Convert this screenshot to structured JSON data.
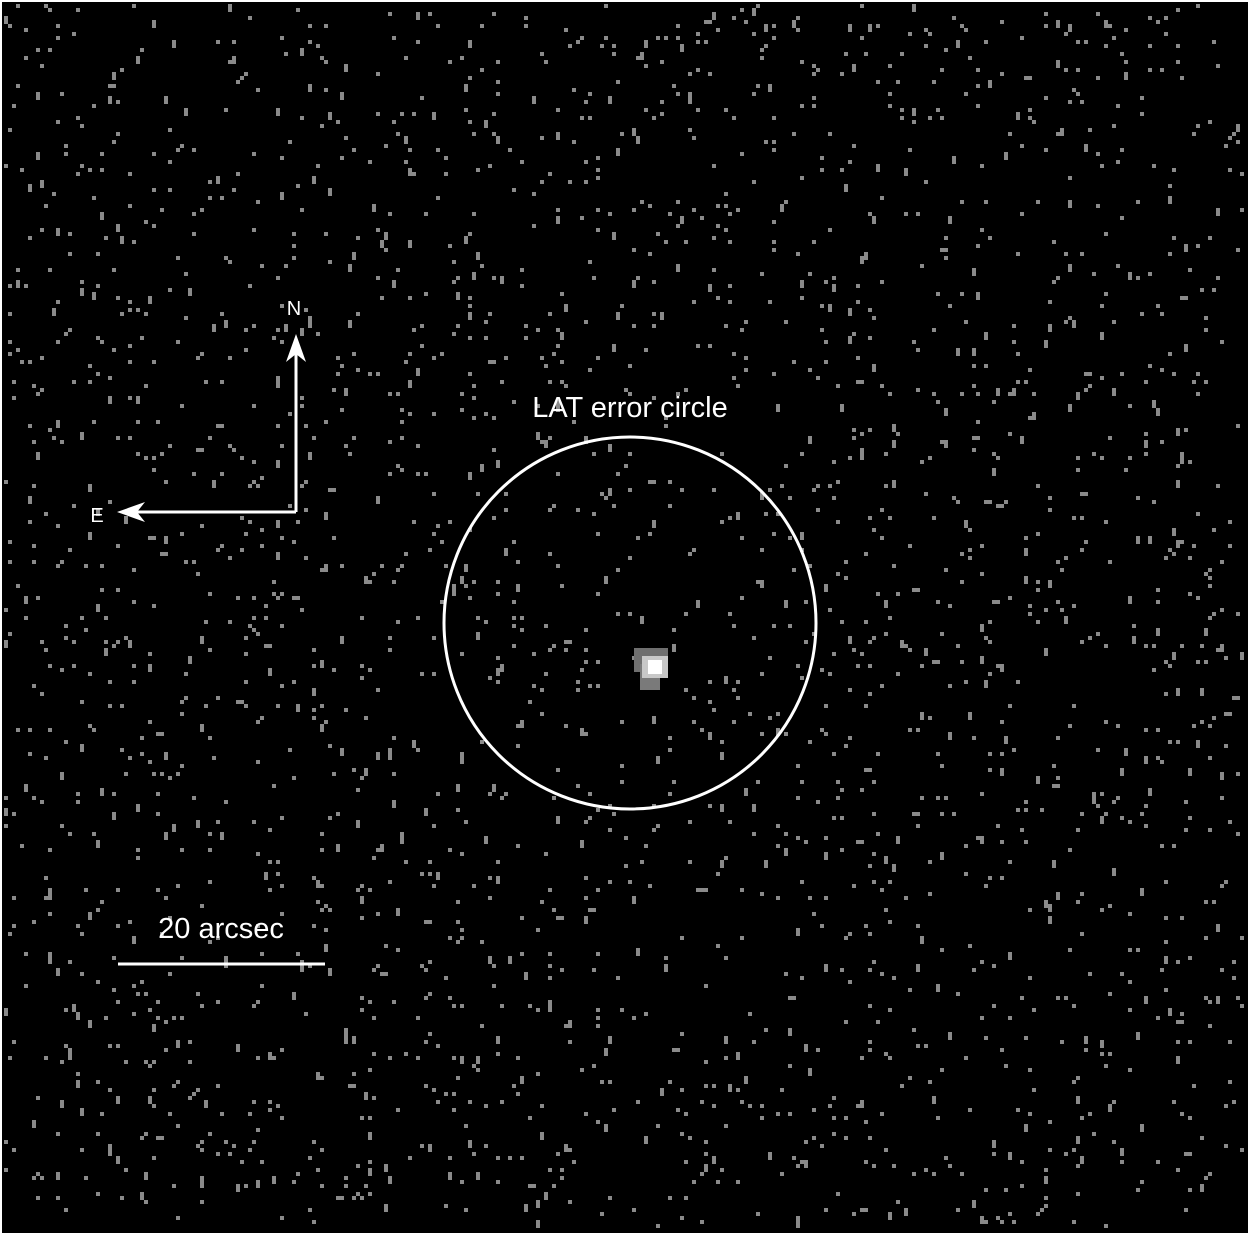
{
  "labels": {
    "north": "N",
    "east": "E",
    "circle": "LAT error circle",
    "scale": "20 arcsec"
  }
}
